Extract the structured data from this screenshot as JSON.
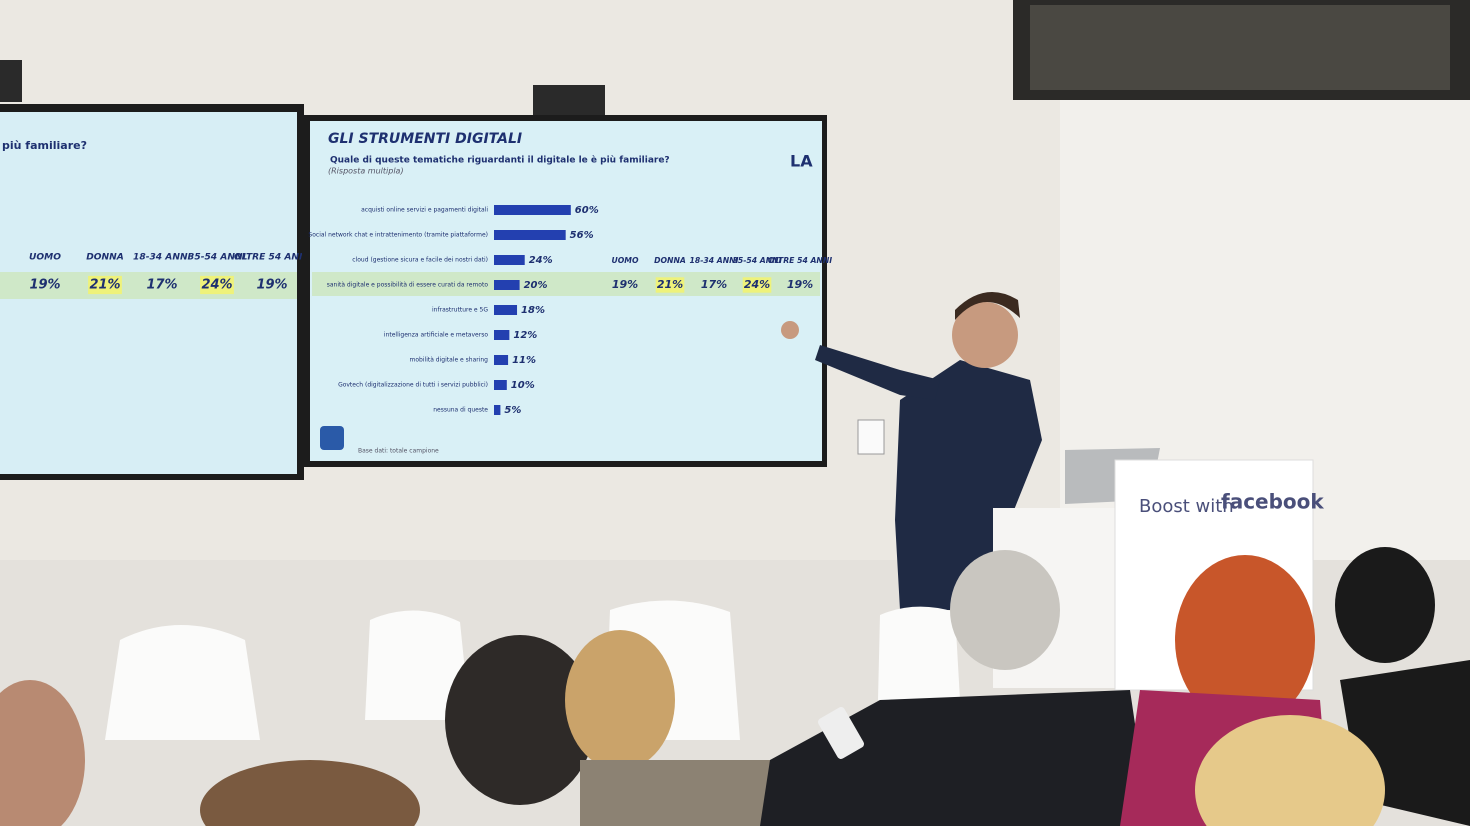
{
  "left_screen": {
    "title_fragment": "più familiare?",
    "columns": [
      "UOMO",
      "DONNA",
      "18-34 ANNI",
      "35-54 ANNI",
      "OLTRE 54 ANNI"
    ],
    "row_values": [
      "19%",
      "21%",
      "17%",
      "24%",
      "19%"
    ]
  },
  "right_screen": {
    "title": "GLI STRUMENTI DIGITALI",
    "question": "Quale di queste tematiche riguardanti il digitale le è più familiare?",
    "note": "(Risposta multipla)",
    "categories": [
      "acquisti online servizi e pagamenti digitali",
      "Social network chat e intrattenimento (tramite piattaforme)",
      "cloud (gestione sicura e facile dei nostri dati)",
      "sanità digitale e possibilità di essere curati da remoto",
      "infrastrutture e 5G",
      "intelligenza artificiale e metaverso",
      "mobilità digitale e sharing",
      "Govtech (digitalizzazione di tutti i servizi pubblici)",
      "nessuna di queste"
    ],
    "values": [
      60,
      56,
      24,
      20,
      18,
      12,
      11,
      10,
      5
    ],
    "value_labels": [
      "60%",
      "56%",
      "24%",
      "20%",
      "18%",
      "12%",
      "11%",
      "10%",
      "5%"
    ],
    "columns": [
      "UOMO",
      "DONNA",
      "18-34 ANNI",
      "35-54 ANNI",
      "OLTRE 54 ANNI"
    ],
    "row_values": [
      "19%",
      "21%",
      "17%",
      "24%",
      "19%"
    ],
    "footer": "Base dati: totale campione"
  },
  "podium_sign": {
    "text_pre": "Boost with",
    "text_brand": "facebook"
  }
}
